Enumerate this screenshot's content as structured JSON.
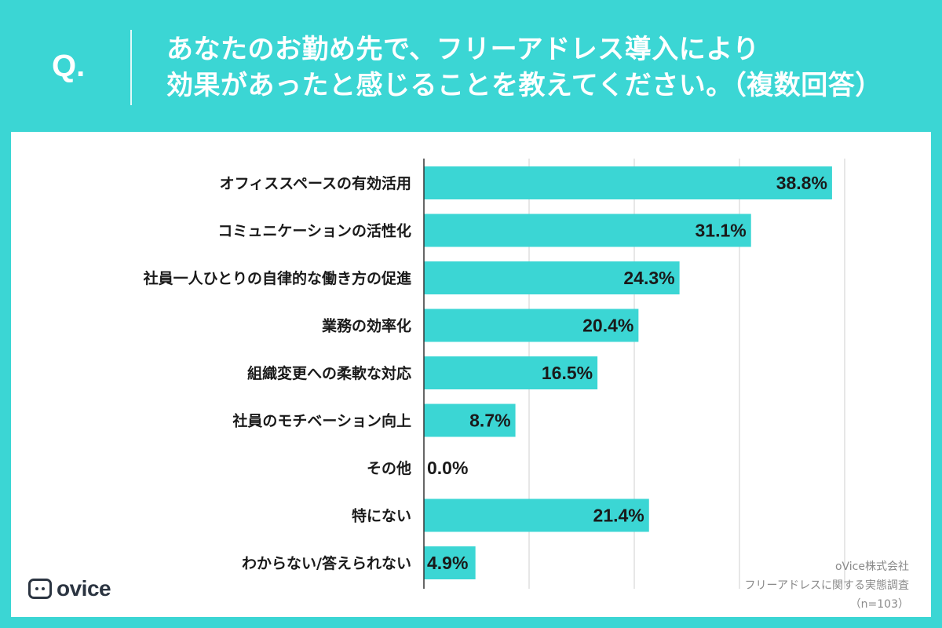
{
  "header": {
    "q_label": "Q.",
    "title_line1": "あなたのお勤め先で、フリーアドレス導入により",
    "title_line2": "効果があったと感じることを教えてください。（複数回答）"
  },
  "chart_data": {
    "type": "bar",
    "orientation": "horizontal",
    "categories": [
      "オフィススペースの有効活用",
      "コミュニケーションの活性化",
      "社員一人ひとりの自律的な働き方の促進",
      "業務の効率化",
      "組織変更への柔軟な対応",
      "社員のモチベーション向上",
      "その他",
      "特にない",
      "わからない/答えられない"
    ],
    "values": [
      38.8,
      31.1,
      24.3,
      20.4,
      16.5,
      8.7,
      0.0,
      21.4,
      4.9
    ],
    "value_labels": [
      "38.8%",
      "31.1%",
      "24.3%",
      "20.4%",
      "16.5%",
      "8.7%",
      "0.0%",
      "21.4%",
      "4.9%"
    ],
    "xlim": [
      0,
      40
    ],
    "grid": true,
    "bar_color": "#3bd6d4",
    "grid_color": "#cfcfcf",
    "text_color": "#1a1a1a"
  },
  "footer": {
    "logo_text": "ovice",
    "source_company": "oVice株式会社",
    "source_survey": "フリーアドレスに関する実態調査",
    "source_n": "（n=103）"
  },
  "colors": {
    "background": "#3bd6d4",
    "panel": "#ffffff"
  }
}
